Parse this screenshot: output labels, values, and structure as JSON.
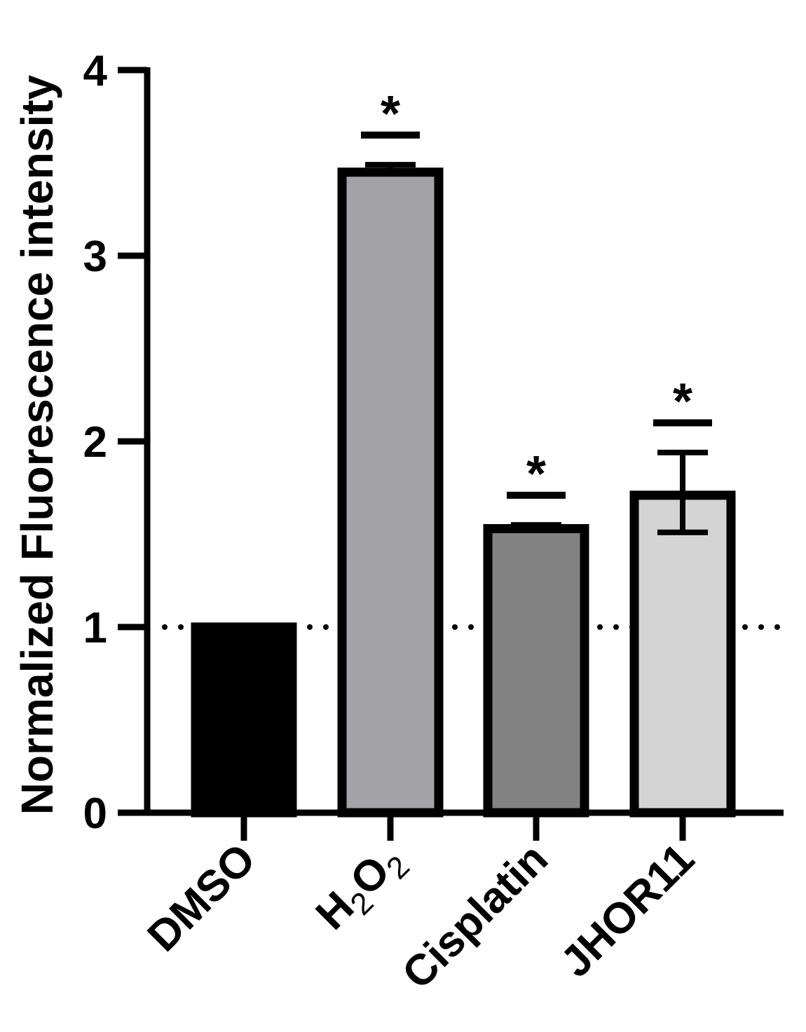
{
  "chart_data": {
    "type": "bar",
    "title": "",
    "xlabel": "",
    "ylabel": "Normalized Fluorescence intensity",
    "ylim": [
      0,
      4
    ],
    "yticks": [
      "0",
      "1",
      "2",
      "3",
      "4"
    ],
    "categories": [
      {
        "name": "DMSO",
        "label": "DMSO",
        "sub": "",
        "tail": ""
      },
      {
        "name": "H2O2",
        "label": "H",
        "sub": "2",
        "tail": "O",
        "sub2": "2"
      },
      {
        "name": "Cisplatin",
        "label": "Cisplatin",
        "sub": "",
        "tail": ""
      },
      {
        "name": "JHOR11",
        "label": "JHOR11",
        "sub": "",
        "tail": ""
      }
    ],
    "values": [
      1.0,
      3.45,
      1.53,
      1.71
    ],
    "error_upper": [
      1.0,
      3.49,
      1.55,
      1.94
    ],
    "error_lower": [
      1.0,
      3.45,
      1.53,
      1.51
    ],
    "significance": [
      "",
      "*",
      "*",
      "*"
    ],
    "significance_bar_y": [
      null,
      3.65,
      1.71,
      2.1
    ],
    "reference_line": 1,
    "colors": {
      "DMSO": "#000000",
      "H2O2": "#a3a2a7",
      "Cisplatin": "#828282",
      "JHOR11": "#d4d4d4",
      "outline": "#000000"
    },
    "grid": false,
    "legend": "none"
  }
}
